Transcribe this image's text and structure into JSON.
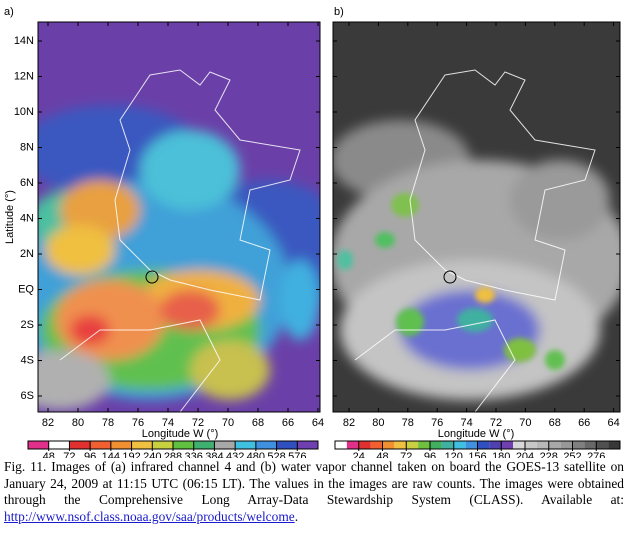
{
  "panels": [
    {
      "label": "a)",
      "y_label": "Latitude (°)",
      "x_label": "Longitude W (°)",
      "yticks": [
        "14N",
        "12N",
        "10N",
        "8N",
        "6N",
        "4N",
        "2N",
        "EQ",
        "2S",
        "4S",
        "6S"
      ],
      "xticks": [
        "82",
        "80",
        "78",
        "76",
        "74",
        "72",
        "70",
        "68",
        "66",
        "64"
      ],
      "colorbar": [
        "48",
        "72",
        "96",
        "144",
        "192",
        "240",
        "288",
        "336",
        "384",
        "432",
        "480",
        "528",
        "576"
      ]
    },
    {
      "label": "b)",
      "x_label": "Longitude W (°)",
      "xticks": [
        "82",
        "80",
        "78",
        "76",
        "74",
        "72",
        "70",
        "68",
        "66",
        "64"
      ],
      "colorbar": [
        "24",
        "48",
        "72",
        "96",
        "120",
        "156",
        "180",
        "204",
        "228",
        "252",
        "276"
      ]
    }
  ],
  "caption": {
    "text": "Fig. 11. Images of (a) infrared channel 4 and (b) water vapor channel taken on board the GOES-13 satellite on January 24, 2009 at 11:15 UTC (06:15 LT). The values in the images are raw counts. The images were obtained through the Comprehensive Long Array-Data Stewardship System (CLASS). Available at: ",
    "link": "http://www.nsof.class.noaa.gov/saa/products/welcome",
    "end": "."
  }
}
